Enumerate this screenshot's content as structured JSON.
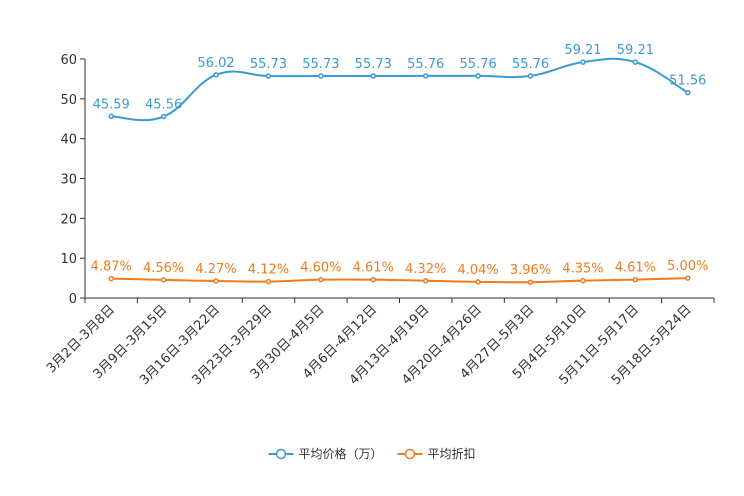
{
  "chart_data": {
    "type": "line",
    "categories": [
      "3月2日-3月8日",
      "3月9日-3月15日",
      "3月16日-3月22日",
      "3月23日-3月29日",
      "3月30日-4月5日",
      "4月6日-4月12日",
      "4月13日-4月19日",
      "4月20日-4月26日",
      "4月27日-5月3日",
      "5月4日-5月10日",
      "5月11日-5月17日",
      "5月18日-5月24日"
    ],
    "series": [
      {
        "name": "平均价格（万）",
        "color": "#3b9ad4",
        "values": [
          45.59,
          45.56,
          56.02,
          55.73,
          55.73,
          55.73,
          55.76,
          55.76,
          55.76,
          59.21,
          59.21,
          51.56
        ],
        "labels": [
          "45.59",
          "45.56",
          "56.02",
          "55.73",
          "55.73",
          "55.73",
          "55.76",
          "55.76",
          "55.76",
          "59.21",
          "59.21",
          "51.56"
        ]
      },
      {
        "name": "平均折扣",
        "color": "#f07c1d",
        "values": [
          4.87,
          4.56,
          4.27,
          4.12,
          4.6,
          4.61,
          4.32,
          4.04,
          3.96,
          4.35,
          4.61,
          5.0
        ],
        "labels": [
          "4.87%",
          "4.56%",
          "4.27%",
          "4.12%",
          "4.60%",
          "4.61%",
          "4.32%",
          "4.04%",
          "3.96%",
          "4.35%",
          "4.61%",
          "5.00%"
        ]
      }
    ],
    "ylim": [
      0,
      60
    ],
    "yticks": [
      "0",
      "10",
      "20",
      "30",
      "40",
      "50",
      "60"
    ],
    "legend_position": "bottom-center",
    "title": "",
    "xlabel": "",
    "ylabel": ""
  }
}
